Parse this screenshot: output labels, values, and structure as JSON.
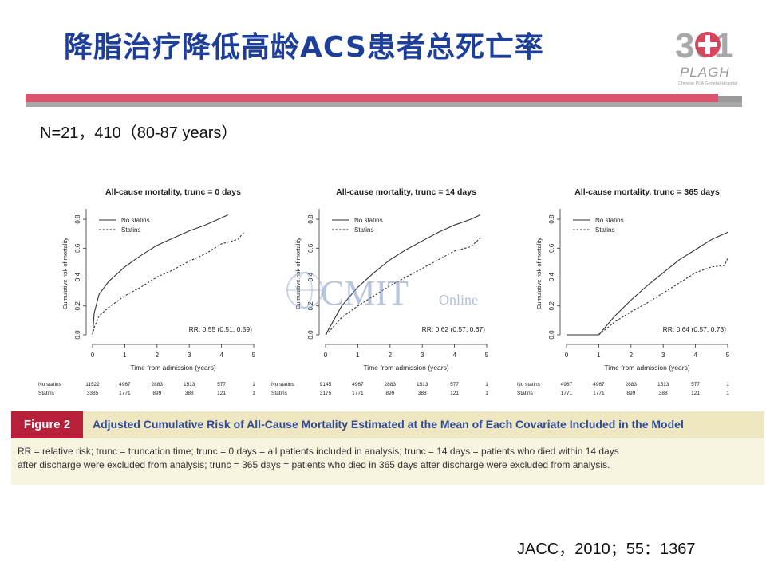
{
  "page": {
    "title": "降脂治疗降低高龄ACS患者总死亡率",
    "subtitle": "N=21，410（80-87  years）",
    "citation": "JACC，2010；55：1367",
    "logo": {
      "number": "301",
      "brand": "PLAGH",
      "caption": "Chinese PLA General Hospital"
    },
    "watermark": {
      "big": "CMIT",
      "small": "Online"
    }
  },
  "figure": {
    "tag": "Figure 2",
    "title": "Adjusted Cumulative Risk of All-Cause Mortality Estimated at the Mean of Each Covariate Included in the Model",
    "caption_line1": "RR = relative risk; trunc = truncation time; trunc = 0 days = all patients included in analysis; trunc = 14 days = patients who died within 14 days",
    "caption_line2": "after discharge were excluded from analysis; trunc = 365 days = patients who died in 365 days after discharge were excluded from analysis."
  },
  "colors": {
    "title": "#1d3f9a",
    "rule": "#d9546e",
    "fig_tag": "#b8203a",
    "fig_title": "#2f4a9a",
    "line": "#333333"
  },
  "chart_data": [
    {
      "type": "line",
      "title": "All-cause mortality, trunc = 0 days",
      "xlabel": "Time from admission (years)",
      "ylabel": "Cumulative risk of mortality",
      "xlim": [
        0,
        5
      ],
      "ylim": [
        0,
        0.85
      ],
      "xticks": [
        "0",
        "1",
        "2",
        "3",
        "4",
        "5"
      ],
      "yticks": [
        "0.0",
        "0.2",
        "0.4",
        "0.6",
        "0.8"
      ],
      "legend": [
        "No statins",
        "Statins"
      ],
      "legend_position": "top-left",
      "annotation": "RR: 0.55 (0.51, 0.59)",
      "series": [
        {
          "name": "No statins",
          "style": "solid",
          "x": [
            0,
            0.05,
            0.2,
            0.5,
            1,
            1.5,
            2,
            2.5,
            3,
            3.5,
            4,
            4.2
          ],
          "y": [
            0.0,
            0.15,
            0.28,
            0.37,
            0.47,
            0.55,
            0.62,
            0.67,
            0.72,
            0.76,
            0.81,
            0.83
          ]
        },
        {
          "name": "Statins",
          "style": "dashed",
          "x": [
            0,
            0.05,
            0.2,
            0.5,
            1,
            1.5,
            2,
            2.5,
            3,
            3.5,
            4,
            4.5,
            4.7
          ],
          "y": [
            0.0,
            0.05,
            0.13,
            0.19,
            0.27,
            0.33,
            0.4,
            0.45,
            0.51,
            0.56,
            0.63,
            0.66,
            0.71
          ]
        }
      ],
      "risk_table": {
        "rows": [
          {
            "label": "No statins",
            "values": [
              "11522",
              "4967",
              "2883",
              "1513",
              "577",
              "1"
            ]
          },
          {
            "label": "Statins",
            "values": [
              "3385",
              "1771",
              "899",
              "388",
              "121",
              "1"
            ]
          }
        ]
      }
    },
    {
      "type": "line",
      "title": "All-cause mortality, trunc = 14 days",
      "xlabel": "Time from admission (years)",
      "ylabel": "Cumulative risk of mortality",
      "xlim": [
        0,
        5
      ],
      "ylim": [
        0,
        0.85
      ],
      "xticks": [
        "0",
        "1",
        "2",
        "3",
        "4",
        "5"
      ],
      "yticks": [
        "0.0",
        "0.2",
        "0.4",
        "0.6",
        "0.8"
      ],
      "legend": [
        "No statins",
        "Statins"
      ],
      "legend_position": "top-left",
      "annotation": "RR: 0.62 (0.57, 0.67)",
      "series": [
        {
          "name": "No statins",
          "style": "solid",
          "x": [
            0,
            0.1,
            0.5,
            1,
            1.5,
            2,
            2.5,
            3,
            3.5,
            4,
            4.5,
            4.8
          ],
          "y": [
            0.0,
            0.04,
            0.2,
            0.33,
            0.43,
            0.52,
            0.59,
            0.65,
            0.71,
            0.76,
            0.8,
            0.83
          ]
        },
        {
          "name": "Statins",
          "style": "dashed",
          "x": [
            0,
            0.1,
            0.5,
            1,
            1.5,
            2,
            2.5,
            3,
            3.5,
            4,
            4.5,
            4.8
          ],
          "y": [
            0.0,
            0.02,
            0.12,
            0.2,
            0.27,
            0.34,
            0.4,
            0.46,
            0.52,
            0.58,
            0.61,
            0.67
          ]
        }
      ],
      "risk_table": {
        "rows": [
          {
            "label": "No statins",
            "values": [
              "9145",
              "4967",
              "2883",
              "1513",
              "577",
              "1"
            ]
          },
          {
            "label": "Statins",
            "values": [
              "3175",
              "1771",
              "899",
              "388",
              "121",
              "1"
            ]
          }
        ]
      }
    },
    {
      "type": "line",
      "title": "All-cause mortality, trunc = 365 days",
      "xlabel": "Time from admission (years)",
      "ylabel": "Cumulative risk of mortality",
      "xlim": [
        0,
        5
      ],
      "ylim": [
        0,
        0.85
      ],
      "xticks": [
        "0",
        "1",
        "2",
        "3",
        "4",
        "5"
      ],
      "yticks": [
        "0.0",
        "0.2",
        "0.4",
        "0.6",
        "0.8"
      ],
      "legend": [
        "No statins",
        "Statins"
      ],
      "legend_position": "top-left",
      "annotation": "RR: 0.64 (0.57, 0.73)",
      "series": [
        {
          "name": "No statins",
          "style": "solid",
          "x": [
            0,
            1,
            1.5,
            2,
            2.5,
            3,
            3.5,
            4,
            4.5,
            5
          ],
          "y": [
            0.0,
            0.0,
            0.13,
            0.24,
            0.34,
            0.43,
            0.52,
            0.59,
            0.66,
            0.71
          ]
        },
        {
          "name": "Statins",
          "style": "dashed",
          "x": [
            0,
            1,
            1.5,
            2,
            2.5,
            3,
            3.5,
            4,
            4.5,
            4.9,
            5
          ],
          "y": [
            0.0,
            0.0,
            0.09,
            0.16,
            0.22,
            0.29,
            0.36,
            0.43,
            0.47,
            0.48,
            0.53
          ]
        }
      ],
      "risk_table": {
        "rows": [
          {
            "label": "No statins",
            "values": [
              "4967",
              "4967",
              "2883",
              "1513",
              "577",
              "1"
            ]
          },
          {
            "label": "Statins",
            "values": [
              "1771",
              "1771",
              "899",
              "388",
              "121",
              "1"
            ]
          }
        ]
      }
    }
  ]
}
